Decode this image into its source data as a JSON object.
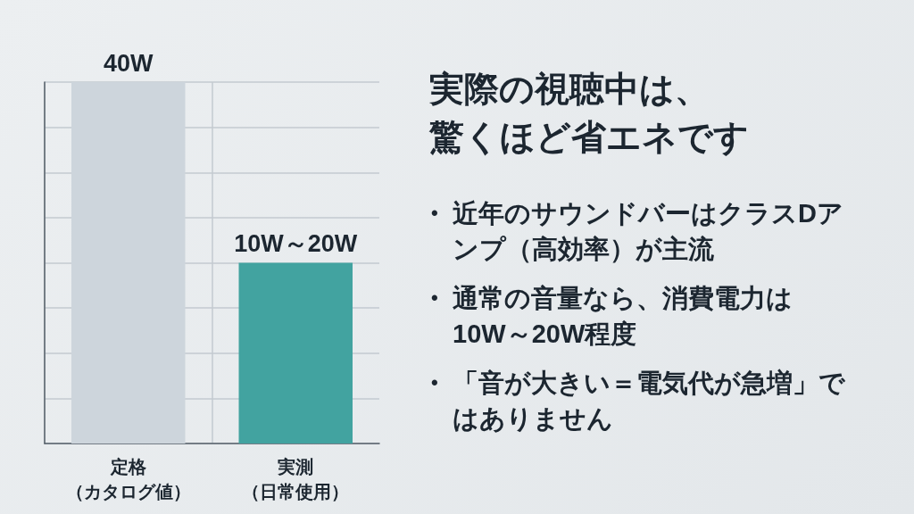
{
  "chart_data": [
    {
      "type": "bar",
      "categories": [
        "定格（カタログ値）",
        "実測（日常使用）"
      ],
      "values": [
        40,
        20
      ],
      "colors": [
        "#cdd5dc",
        "#42a3a0"
      ],
      "value_labels": [
        "40W",
        "10W～20W"
      ],
      "ylim": [
        0,
        40
      ],
      "yticks": [
        {
          "value": 0,
          "label": null
        },
        {
          "value": 5,
          "label": null
        },
        {
          "value": 10,
          "label": null
        },
        {
          "value": 15,
          "label": null
        },
        {
          "value": 20,
          "label": null
        },
        {
          "value": 25,
          "label": null
        },
        {
          "value": 30,
          "label": null
        },
        {
          "value": 35,
          "label": null
        },
        {
          "value": 40,
          "label": null
        }
      ],
      "grid": true,
      "tick_labels": "x"
    },
    {
      "type": "other",
      "title": "実際の視聴中は、驚くほど省エネです",
      "annotations": [
        "• 近年のサウンドバーはクラスDアンプ（高効率）が主流",
        "• 通常の音量なら、消費電力は10W～20W程度",
        "• 「音が大きい＝電気代が急増」ではありません"
      ]
    }
  ]
}
